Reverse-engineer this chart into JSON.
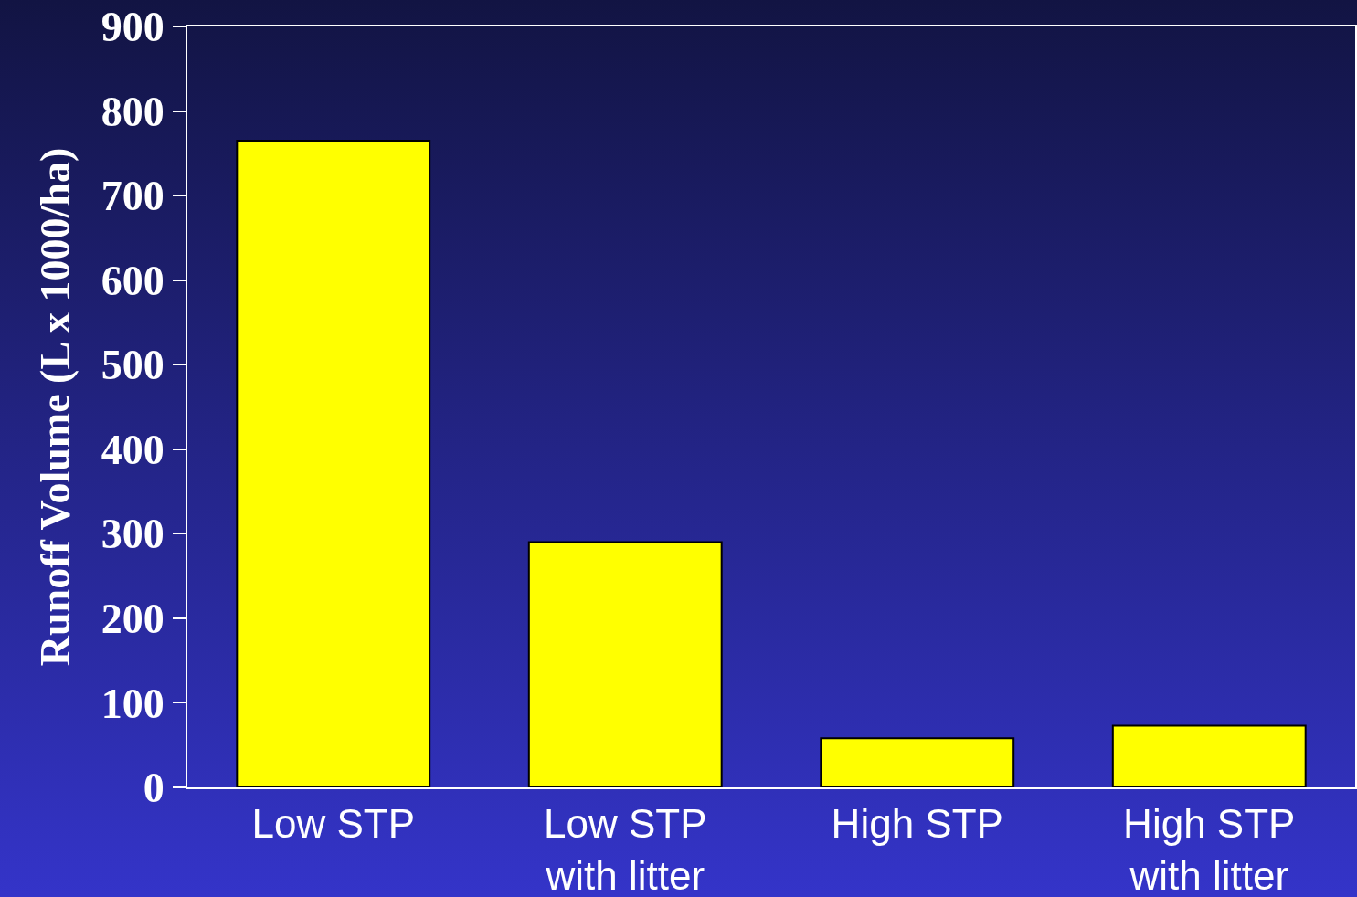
{
  "chart_data": {
    "type": "bar",
    "ylabel": "Runoff Volume (L x 1000/ha)",
    "categories": [
      "Low STP",
      "Low STP\nwith litter",
      "High STP",
      "High STP\nwith litter"
    ],
    "values": [
      765,
      290,
      58,
      73
    ],
    "color": "#ffff00",
    "ylim": [
      0,
      900
    ],
    "yticks": [
      0,
      100,
      200,
      300,
      400,
      500,
      600,
      700,
      800,
      900
    ],
    "grid": false
  }
}
